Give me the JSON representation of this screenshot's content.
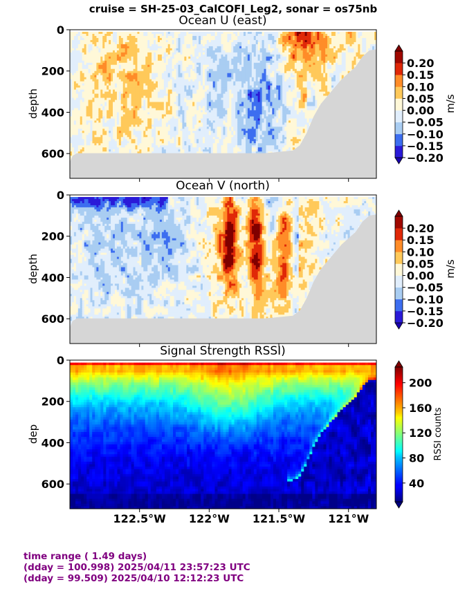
{
  "suptitle": "cruise = SH-25-03_CalCOFI_Leg2,  sonar = os75nb",
  "footer": {
    "line1": "time range ( 1.49 days)",
    "line2": "(dday = 100.998) 2025/04/11 23:57:23 UTC",
    "line3": "(dday = 99.509) 2025/04/10 12:12:23 UTC"
  },
  "colors": {
    "bottom_mask": "#d6d6d6",
    "footer_text": "#800080"
  },
  "chart_data": [
    {
      "type": "heatmap",
      "title": "Ocean U (east)",
      "ylabel": "depth",
      "xlabel": "",
      "xlim": [
        -123.0,
        -120.8
      ],
      "ylim": [
        720,
        0
      ],
      "yticks": [
        0,
        200,
        400,
        600
      ],
      "ytick_labels": [
        "0",
        "200",
        "400",
        "600"
      ],
      "colorbar": {
        "label": "m/s",
        "levels": [
          -0.2,
          -0.15,
          -0.1,
          -0.05,
          0.0,
          0.05,
          0.1,
          0.15,
          0.2
        ],
        "tick_labels": [
          "−0.20",
          "−0.15",
          "−0.10",
          "−0.05",
          "0.00",
          "0.05",
          "0.10",
          "0.15",
          "0.20"
        ],
        "colors": [
          "#2a1ad8",
          "#3d6ef0",
          "#a9cdf2",
          "#e1eefc",
          "#fff8d8",
          "#ffc95a",
          "#ff8c28",
          "#e02808",
          "#a00800"
        ],
        "extend_colors": [
          "#1a00b0",
          "#800000"
        ]
      },
      "seafloor_depth": [
        [
          -123.0,
          640
        ],
        [
          -122.98,
          610
        ],
        [
          -122.95,
          598
        ],
        [
          -122.0,
          598
        ],
        [
          -121.6,
          598
        ],
        [
          -121.4,
          585
        ],
        [
          -121.35,
          560
        ],
        [
          -121.3,
          500
        ],
        [
          -121.25,
          420
        ],
        [
          -121.2,
          360
        ],
        [
          -121.15,
          320
        ],
        [
          -121.1,
          280
        ],
        [
          -121.05,
          240
        ],
        [
          -121.0,
          210
        ],
        [
          -120.95,
          180
        ],
        [
          -120.9,
          130
        ],
        [
          -120.85,
          100
        ],
        [
          -120.8,
          95
        ]
      ]
    },
    {
      "type": "heatmap",
      "title": "Ocean V (north)",
      "ylabel": "depth",
      "xlabel": "",
      "xlim": [
        -123.0,
        -120.8
      ],
      "ylim": [
        720,
        0
      ],
      "yticks": [
        0,
        200,
        400,
        600
      ],
      "ytick_labels": [
        "0",
        "200",
        "400",
        "600"
      ],
      "colorbar": {
        "label": "m/s",
        "levels": [
          -0.2,
          -0.15,
          -0.1,
          -0.05,
          0.0,
          0.05,
          0.1,
          0.15,
          0.2
        ],
        "tick_labels": [
          "−0.20",
          "−0.15",
          "−0.10",
          "−0.05",
          "0.00",
          "0.05",
          "0.10",
          "0.15",
          "0.20"
        ],
        "colors": [
          "#2a1ad8",
          "#3d6ef0",
          "#a9cdf2",
          "#e1eefc",
          "#fff8d8",
          "#ffc95a",
          "#ff8c28",
          "#e02808",
          "#a00800"
        ],
        "extend_colors": [
          "#1a00b0",
          "#800000"
        ]
      },
      "seafloor_depth": [
        [
          -123.0,
          640
        ],
        [
          -122.98,
          610
        ],
        [
          -122.95,
          598
        ],
        [
          -122.0,
          598
        ],
        [
          -121.6,
          598
        ],
        [
          -121.4,
          585
        ],
        [
          -121.35,
          560
        ],
        [
          -121.3,
          500
        ],
        [
          -121.25,
          420
        ],
        [
          -121.2,
          360
        ],
        [
          -121.15,
          320
        ],
        [
          -121.1,
          280
        ],
        [
          -121.05,
          240
        ],
        [
          -121.0,
          210
        ],
        [
          -120.95,
          180
        ],
        [
          -120.9,
          130
        ],
        [
          -120.85,
          100
        ],
        [
          -120.8,
          95
        ]
      ]
    },
    {
      "type": "heatmap",
      "title": "Signal Strength RSSI)",
      "ylabel": "dep",
      "xlabel": "",
      "xlim": [
        -123.0,
        -120.8
      ],
      "ylim": [
        720,
        0
      ],
      "yticks": [
        0,
        200,
        400,
        600
      ],
      "ytick_labels": [
        "0",
        "200",
        "400",
        "600"
      ],
      "xticks": [
        -122.5,
        -122.0,
        -121.5,
        -121.0
      ],
      "xtick_labels": [
        "122.5°W",
        "122°W",
        "121.5°W",
        "121°W"
      ],
      "colorbar": {
        "label": "RSSI counts",
        "range": [
          10,
          225
        ],
        "ticks": [
          40,
          80,
          120,
          160,
          200
        ],
        "tick_labels": [
          "40",
          "80",
          "120",
          "160",
          "200"
        ],
        "colormap": "jet"
      }
    }
  ]
}
